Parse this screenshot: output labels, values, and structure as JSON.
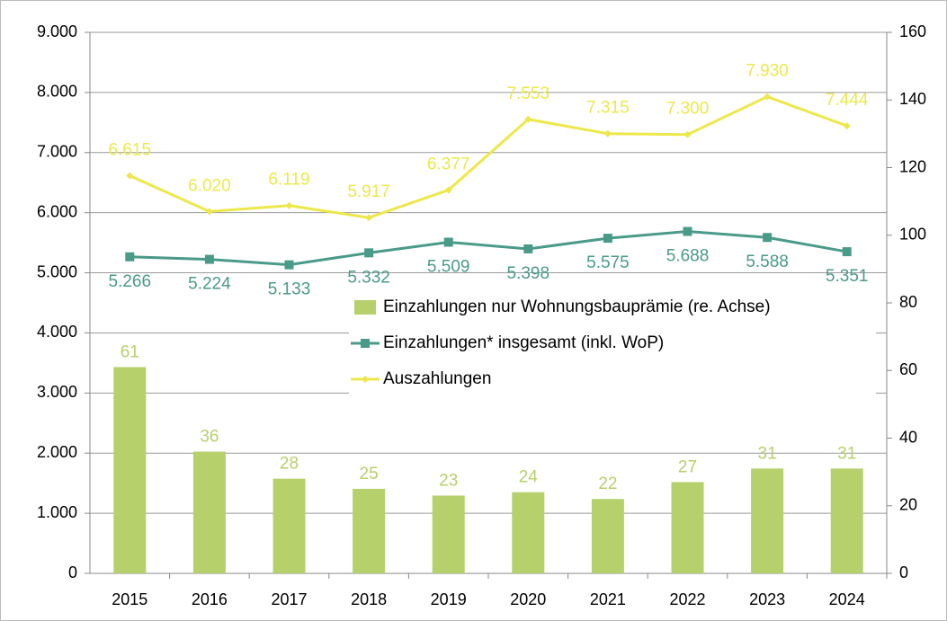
{
  "chart_data": {
    "type": "bar",
    "categories": [
      "2015",
      "2016",
      "2017",
      "2018",
      "2019",
      "2020",
      "2021",
      "2022",
      "2023",
      "2024"
    ],
    "series": [
      {
        "name": "Einzahlungen nur Wohnungsbauprämie (re. Achse)",
        "type": "bar",
        "axis": "y2",
        "color": "#b6d06c",
        "values": [
          61,
          36,
          28,
          25,
          23,
          24,
          22,
          27,
          31,
          31
        ]
      },
      {
        "name": "Einzahlungen* insgesamt (inkl. WoP)",
        "type": "line",
        "color": "#4a9a8a",
        "values": [
          5266,
          5224,
          5133,
          5332,
          5509,
          5398,
          5575,
          5688,
          5588,
          5351
        ],
        "value_labels": [
          "5.266",
          "5.224",
          "5.133",
          "5.332",
          "5.509",
          "5.398",
          "5.575",
          "5.688",
          "5.588",
          "5.351"
        ]
      },
      {
        "name": "Auszahlungen",
        "type": "line",
        "color": "#ece84c",
        "values": [
          6615,
          6020,
          6119,
          5917,
          6377,
          7553,
          7315,
          7300,
          7930,
          7444
        ],
        "value_labels": [
          "6.615",
          "6.020",
          "6.119",
          "5.917",
          "6.377",
          "7.553",
          "7.315",
          "7.300",
          "7.930",
          "7.444"
        ]
      }
    ],
    "ylim": [
      0,
      9000
    ],
    "yticks": [
      0,
      {
        "value": 1000,
        "label": "1.000"
      },
      {
        "value": 2000,
        "label": "2.000"
      },
      {
        "value": 3000,
        "label": "3.000"
      },
      {
        "value": 4000,
        "label": "4.000"
      },
      {
        "value": 5000,
        "label": "5.000"
      },
      {
        "value": 6000,
        "label": "6.000"
      },
      {
        "value": 7000,
        "label": "7.000"
      },
      {
        "value": 8000,
        "label": "8.000"
      },
      {
        "value": 9000,
        "label": "9.000"
      }
    ],
    "y2lim": [
      0,
      160
    ],
    "y2ticks": [
      0,
      20,
      40,
      60,
      80,
      100,
      120,
      140,
      160
    ],
    "grid": true
  }
}
